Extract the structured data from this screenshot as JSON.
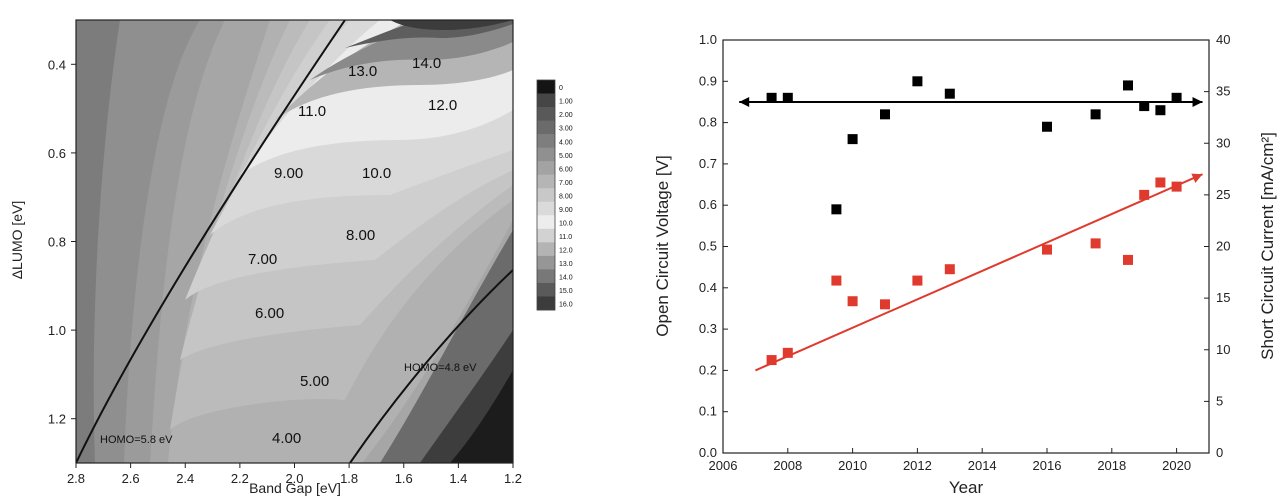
{
  "chart_data": [
    {
      "type": "contour",
      "xlabel": "Band Gap [eV]",
      "ylabel": "ΔLUMO [eV]",
      "xlim": [
        2.8,
        1.2
      ],
      "ylim": [
        1.3,
        0.3
      ],
      "x_ticks": [
        "2.8",
        "2.6",
        "2.4",
        "2.2",
        "2.0",
        "1.8",
        "1.6",
        "1.4",
        "1.2"
      ],
      "y_ticks": [
        "0.4",
        "0.6",
        "0.8",
        "1.0",
        "1.2"
      ],
      "contour_labels": [
        "4.00",
        "5.00",
        "6.00",
        "7.00",
        "8.00",
        "9.00",
        "10.0",
        "11.0",
        "12.0",
        "13.0",
        "14.0"
      ],
      "colorbar_levels": [
        "0",
        "1.00",
        "2.00",
        "3.00",
        "4.00",
        "5.00",
        "6.00",
        "7.00",
        "8.00",
        "9.00",
        "10.0",
        "11.0",
        "12.0",
        "13.0",
        "14.0",
        "15.0",
        "16.0"
      ],
      "annotations": [
        "HOMO=5.8 eV",
        "HOMO=4.8 eV"
      ]
    },
    {
      "type": "scatter",
      "xlabel": "Year",
      "ylabel": "Open Circuit Voltage [V]",
      "y2label": "Short Circuit Current [mA/cm²]",
      "xlim": [
        2006,
        2021
      ],
      "ylim": [
        0.0,
        1.0
      ],
      "y2lim": [
        0,
        40
      ],
      "x_ticks": [
        "2006",
        "2008",
        "2010",
        "2012",
        "2014",
        "2016",
        "2018",
        "2020"
      ],
      "y_ticks": [
        "0.0",
        "0.1",
        "0.2",
        "0.3",
        "0.4",
        "0.5",
        "0.6",
        "0.7",
        "0.8",
        "0.9",
        "1.0"
      ],
      "y2_ticks": [
        "0",
        "5",
        "10",
        "15",
        "20",
        "25",
        "30",
        "35",
        "40"
      ],
      "series": [
        {
          "axis": "left",
          "color": "#000000",
          "points": [
            [
              2007.5,
              0.86
            ],
            [
              2008,
              0.86
            ],
            [
              2009.5,
              0.59
            ],
            [
              2010,
              0.76
            ],
            [
              2011,
              0.82
            ],
            [
              2012,
              0.9
            ],
            [
              2013,
              0.87
            ],
            [
              2016,
              0.79
            ],
            [
              2017.5,
              0.82
            ],
            [
              2018.5,
              0.89
            ],
            [
              2019,
              0.84
            ],
            [
              2019.5,
              0.83
            ],
            [
              2020,
              0.86
            ]
          ],
          "trend": [
            [
              2006.5,
              0.85
            ],
            [
              2020.8,
              0.85
            ]
          ]
        },
        {
          "axis": "right",
          "color": "#e03a2e",
          "points": [
            [
              2007.5,
              9.0
            ],
            [
              2008,
              9.7
            ],
            [
              2009.5,
              16.7
            ],
            [
              2010,
              14.7
            ],
            [
              2011,
              14.4
            ],
            [
              2012,
              16.7
            ],
            [
              2013,
              17.8
            ],
            [
              2016,
              19.7
            ],
            [
              2017.5,
              20.3
            ],
            [
              2018.5,
              18.7
            ],
            [
              2019,
              25.0
            ],
            [
              2019.5,
              26.2
            ],
            [
              2020,
              25.8
            ]
          ],
          "trend": [
            [
              2007,
              8.0
            ],
            [
              2020.8,
              27.0
            ]
          ]
        }
      ]
    }
  ]
}
